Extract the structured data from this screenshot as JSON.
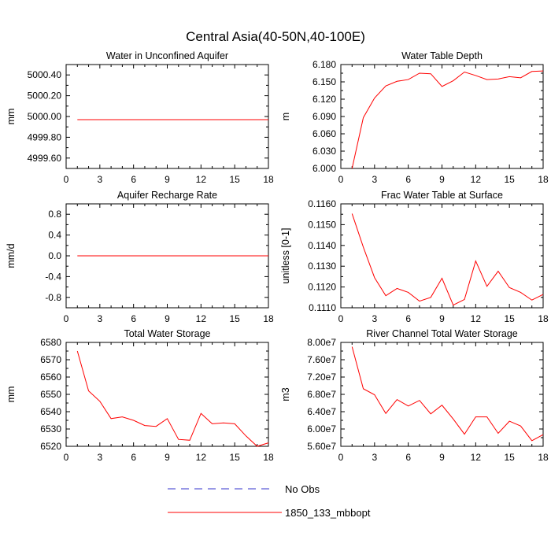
{
  "page": {
    "title": "Central Asia(40-50N,40-100E)",
    "colors": {
      "series": "#ff0000",
      "no_obs": "#3333cc",
      "axis": "#000000"
    }
  },
  "legend": [
    {
      "label": "No Obs",
      "style": "dashed",
      "color": "#3333cc"
    },
    {
      "label": "1850_133_mbbopt",
      "style": "solid",
      "color": "#ff0000"
    }
  ],
  "chart_data": [
    {
      "type": "line",
      "title": "Water in Unconfined Aquifer",
      "ylabel": "mm",
      "xlim": [
        0,
        18
      ],
      "ylim": [
        4999.5,
        5000.5
      ],
      "x_ticks": [
        "0",
        "3",
        "6",
        "9",
        "12",
        "15",
        "18"
      ],
      "y_ticks": [
        {
          "v": 4999.6,
          "t": "4999.60"
        },
        {
          "v": 4999.8,
          "t": "4999.80"
        },
        {
          "v": 5000.0,
          "t": "5000.00"
        },
        {
          "v": 5000.2,
          "t": "5000.20"
        },
        {
          "v": 5000.4,
          "t": "5000.40"
        }
      ],
      "x": [
        1,
        2,
        3,
        4,
        5,
        6,
        7,
        8,
        9,
        10,
        11,
        12,
        13,
        14,
        15,
        16,
        17,
        18
      ],
      "series": [
        {
          "values": [
            4999.97,
            4999.97,
            4999.97,
            4999.97,
            4999.97,
            4999.97,
            4999.97,
            4999.97,
            4999.97,
            4999.97,
            4999.97,
            4999.97,
            4999.97,
            4999.97,
            4999.97,
            4999.97,
            4999.97,
            4999.97
          ]
        }
      ]
    },
    {
      "type": "line",
      "title": "Water Table Depth",
      "ylabel": "m",
      "xlim": [
        0,
        18
      ],
      "ylim": [
        6.0,
        6.18
      ],
      "x_ticks": [
        "0",
        "3",
        "6",
        "9",
        "12",
        "15",
        "18"
      ],
      "y_ticks": [
        {
          "v": 6.0,
          "t": "6.000"
        },
        {
          "v": 6.03,
          "t": "6.030"
        },
        {
          "v": 6.06,
          "t": "6.060"
        },
        {
          "v": 6.09,
          "t": "6.090"
        },
        {
          "v": 6.12,
          "t": "6.120"
        },
        {
          "v": 6.15,
          "t": "6.150"
        },
        {
          "v": 6.18,
          "t": "6.180"
        }
      ],
      "x": [
        1,
        2,
        3,
        4,
        5,
        6,
        7,
        8,
        9,
        10,
        11,
        12,
        13,
        14,
        15,
        16,
        17,
        18
      ],
      "series": [
        {
          "values": [
            6.0,
            6.088,
            6.122,
            6.143,
            6.151,
            6.154,
            6.165,
            6.164,
            6.142,
            6.152,
            6.167,
            6.161,
            6.154,
            6.155,
            6.159,
            6.157,
            6.168,
            6.169
          ]
        }
      ]
    },
    {
      "type": "line",
      "title": "Aquifer Recharge Rate",
      "ylabel": "mm/d",
      "xlim": [
        0,
        18
      ],
      "ylim": [
        -1.0,
        1.0
      ],
      "x_ticks": [
        "0",
        "3",
        "6",
        "9",
        "12",
        "15",
        "18"
      ],
      "y_ticks": [
        {
          "v": -0.8,
          "t": "-0.8"
        },
        {
          "v": -0.4,
          "t": "-0.4"
        },
        {
          "v": 0.0,
          "t": "0.0"
        },
        {
          "v": 0.4,
          "t": "0.4"
        },
        {
          "v": 0.8,
          "t": "0.8"
        }
      ],
      "x": [
        1,
        2,
        3,
        4,
        5,
        6,
        7,
        8,
        9,
        10,
        11,
        12,
        13,
        14,
        15,
        16,
        17,
        18
      ],
      "series": [
        {
          "values": [
            0,
            0,
            0,
            0,
            0,
            0,
            0,
            0,
            0,
            0,
            0,
            0,
            0,
            0,
            0,
            0,
            0,
            0
          ]
        }
      ]
    },
    {
      "type": "line",
      "title": "Frac Water Table at Surface",
      "ylabel": "unitless [0-1]",
      "xlim": [
        0,
        18
      ],
      "ylim": [
        0.111,
        0.116
      ],
      "x_ticks": [
        "0",
        "3",
        "6",
        "9",
        "12",
        "15",
        "18"
      ],
      "y_ticks": [
        {
          "v": 0.111,
          "t": "0.1110"
        },
        {
          "v": 0.112,
          "t": "0.1120"
        },
        {
          "v": 0.113,
          "t": "0.1130"
        },
        {
          "v": 0.114,
          "t": "0.1140"
        },
        {
          "v": 0.115,
          "t": "0.1150"
        },
        {
          "v": 0.116,
          "t": "0.1160"
        }
      ],
      "x": [
        1,
        2,
        3,
        4,
        5,
        6,
        7,
        8,
        9,
        10,
        11,
        12,
        13,
        14,
        15,
        16,
        17,
        18
      ],
      "series": [
        {
          "values": [
            0.11553,
            0.11392,
            0.11245,
            0.11158,
            0.11193,
            0.11174,
            0.11132,
            0.1115,
            0.11242,
            0.11113,
            0.1114,
            0.11325,
            0.11203,
            0.11276,
            0.11197,
            0.11174,
            0.11137,
            0.11164
          ]
        }
      ]
    },
    {
      "type": "line",
      "title": "Total Water Storage",
      "ylabel": "mm",
      "xlim": [
        0,
        18
      ],
      "ylim": [
        6520,
        6580
      ],
      "x_ticks": [
        "0",
        "3",
        "6",
        "9",
        "12",
        "15",
        "18"
      ],
      "y_ticks": [
        {
          "v": 6520,
          "t": "6520"
        },
        {
          "v": 6530,
          "t": "6530"
        },
        {
          "v": 6540,
          "t": "6540"
        },
        {
          "v": 6550,
          "t": "6550"
        },
        {
          "v": 6560,
          "t": "6560"
        },
        {
          "v": 6570,
          "t": "6570"
        },
        {
          "v": 6580,
          "t": "6580"
        }
      ],
      "x": [
        1,
        2,
        3,
        4,
        5,
        6,
        7,
        8,
        9,
        10,
        11,
        12,
        13,
        14,
        15,
        16,
        17,
        18
      ],
      "series": [
        {
          "values": [
            6575,
            6552,
            6546,
            6536,
            6537,
            6535,
            6532,
            6531.5,
            6536,
            6524,
            6523.5,
            6539,
            6533,
            6533.5,
            6533,
            6526,
            6520,
            6522
          ]
        }
      ]
    },
    {
      "type": "line",
      "title": "River Channel Total Water Storage",
      "ylabel": "m3",
      "xlim": [
        0,
        18
      ],
      "ylim": [
        56000000,
        80000000
      ],
      "x_ticks": [
        "0",
        "3",
        "6",
        "9",
        "12",
        "15",
        "18"
      ],
      "y_ticks": [
        {
          "v": 56000000,
          "t": "5.60e7"
        },
        {
          "v": 60000000,
          "t": "6.00e7"
        },
        {
          "v": 64000000,
          "t": "6.40e7"
        },
        {
          "v": 68000000,
          "t": "6.80e7"
        },
        {
          "v": 72000000,
          "t": "7.20e7"
        },
        {
          "v": 76000000,
          "t": "7.60e7"
        },
        {
          "v": 80000000,
          "t": "8.00e7"
        }
      ],
      "x": [
        1,
        2,
        3,
        4,
        5,
        6,
        7,
        8,
        9,
        10,
        11,
        12,
        13,
        14,
        15,
        16,
        17,
        18
      ],
      "series": [
        {
          "values": [
            79000000,
            69300000,
            67900000,
            63600000,
            66800000,
            65300000,
            66600000,
            63500000,
            65500000,
            62300000,
            58800000,
            62800000,
            62800000,
            59000000,
            61800000,
            60700000,
            57300000,
            58700000
          ]
        }
      ]
    }
  ]
}
